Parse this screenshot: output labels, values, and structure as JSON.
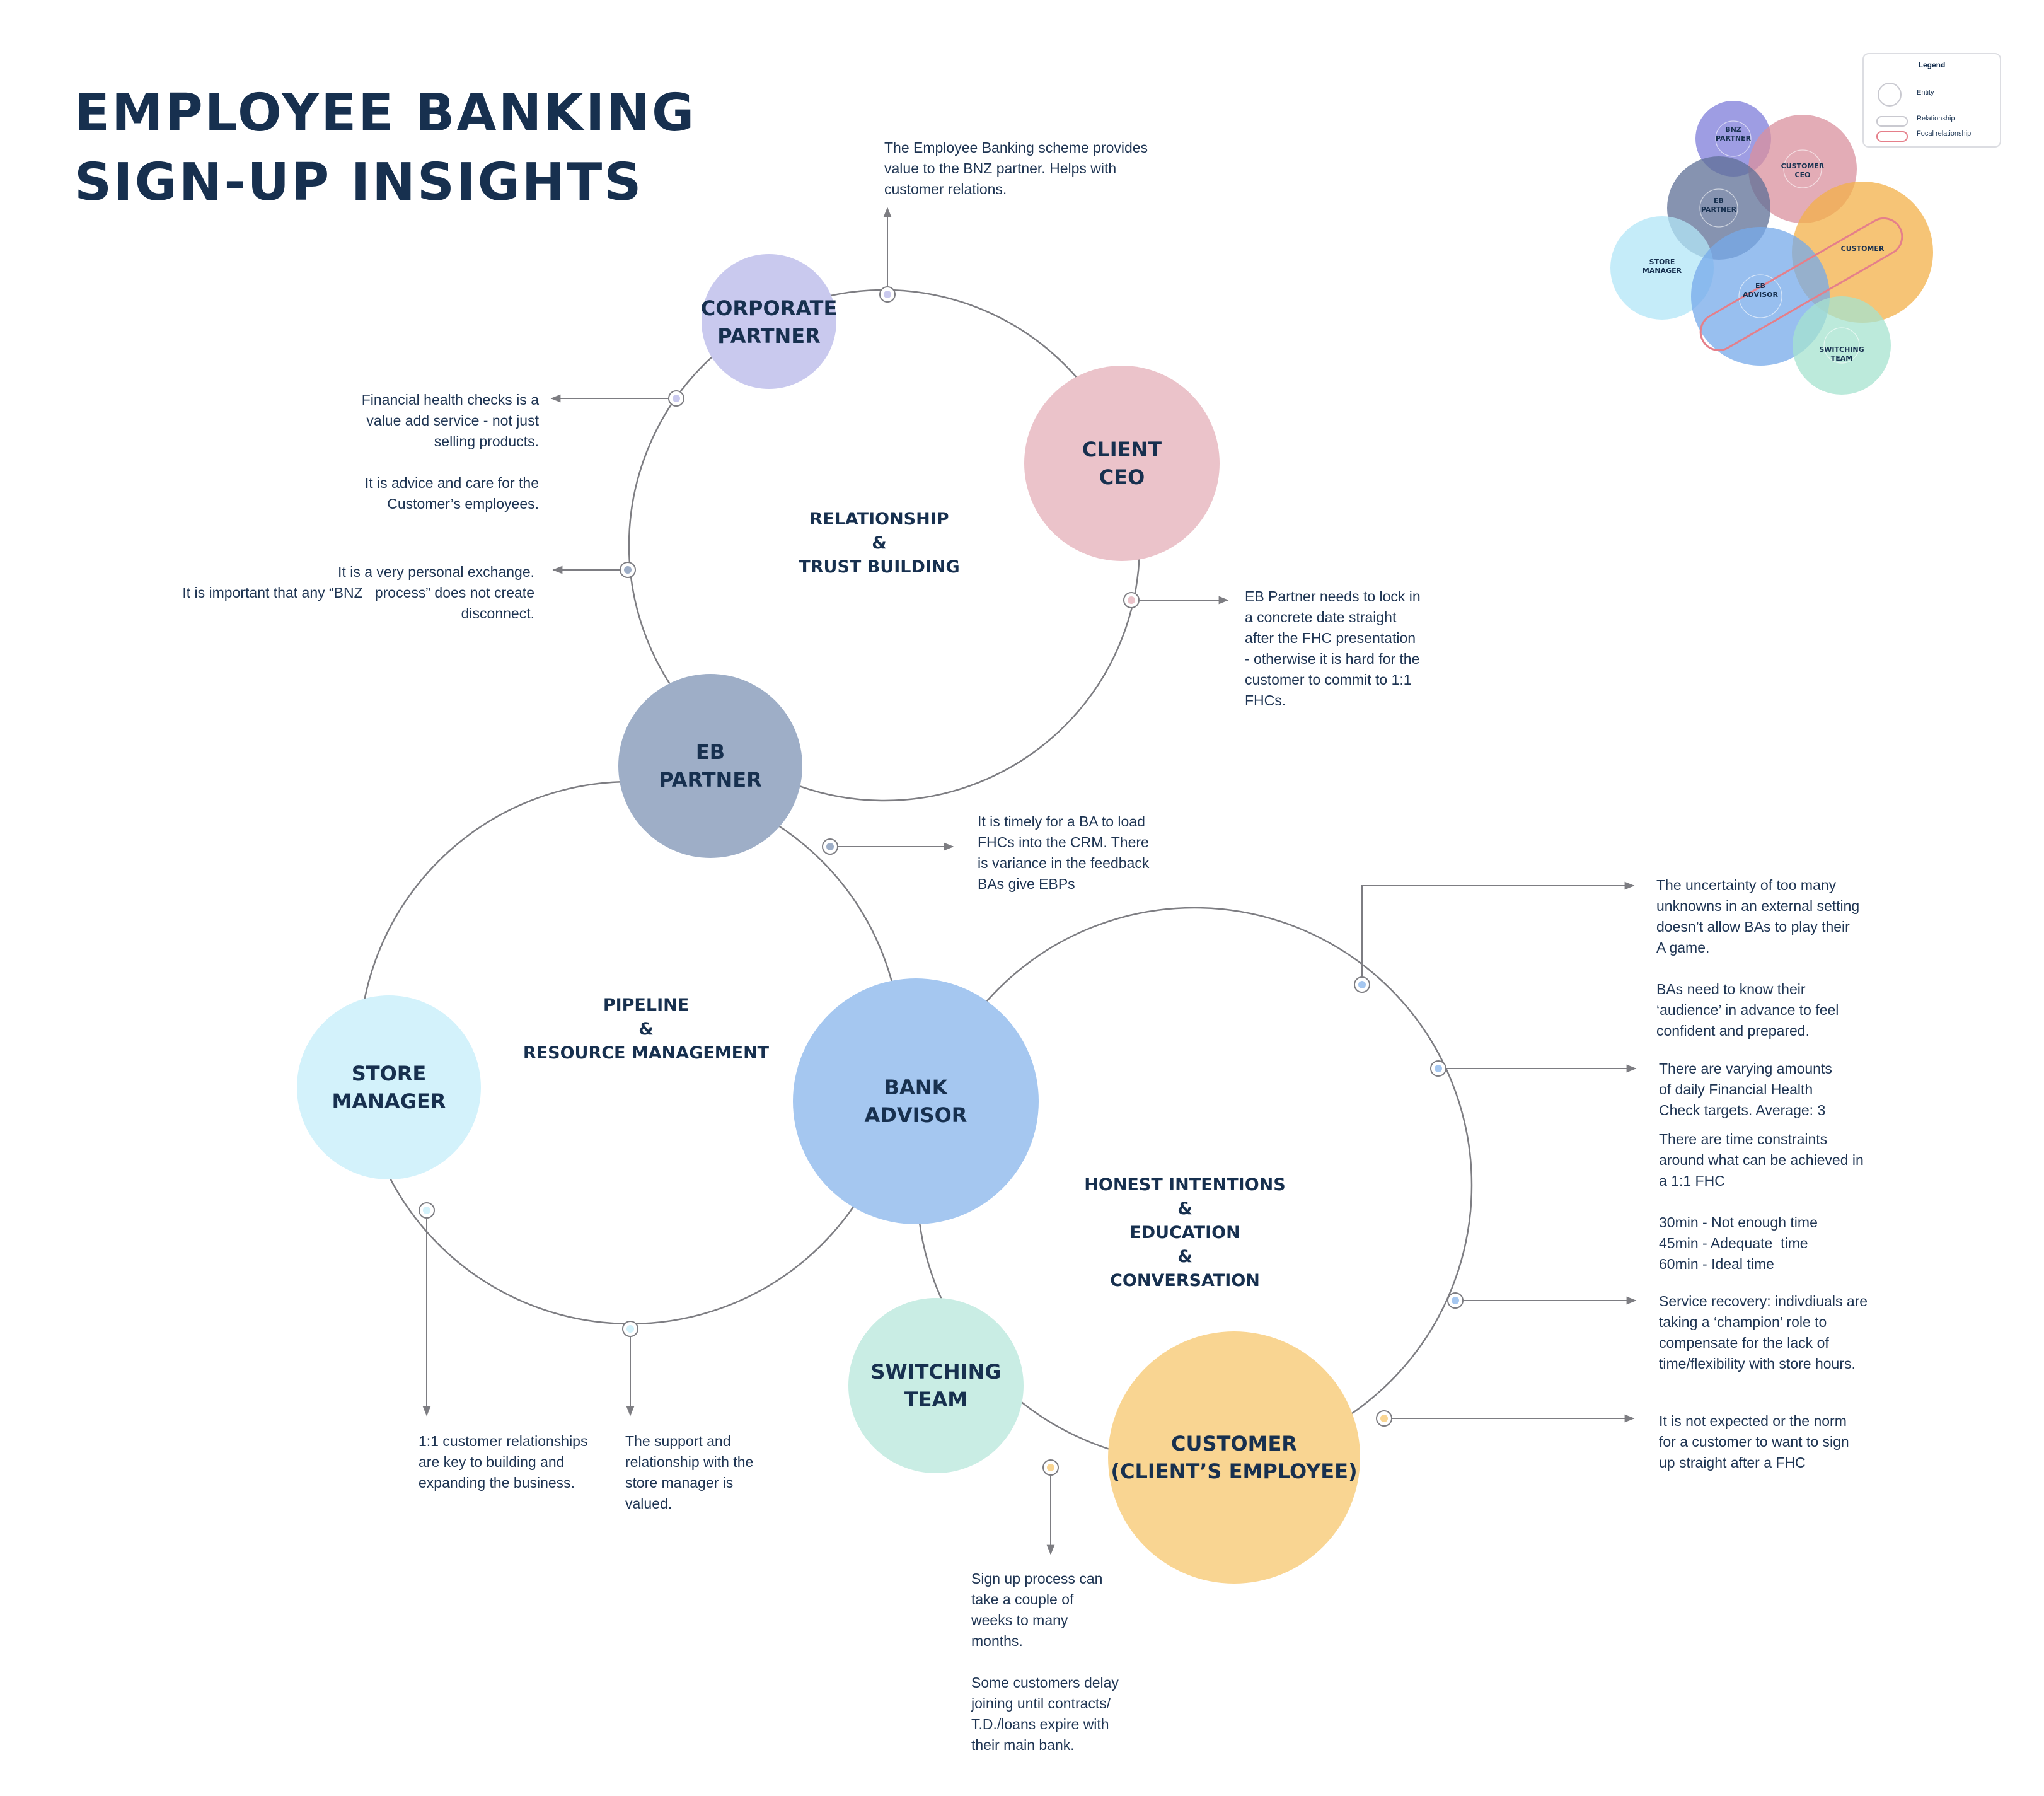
{
  "title": {
    "line1": "EMPLOYEE BANKING",
    "line2": "SIGN-UP INSIGHTS"
  },
  "colors": {
    "ink": "#17304f",
    "line": "#7d7d82",
    "corporate_partner": "#c9c9ee",
    "client_ceo": "#ebc3ca",
    "eb_partner": "#9eaec7",
    "store_manager": "#d3f2fb",
    "bank_advisor": "#a5c7f0",
    "switching_team": "#c9ede4",
    "customer": "#f9d592",
    "focal": "#e57f8a"
  },
  "entities": {
    "corporate_partner": "CORPORATE\nPARTNER",
    "client_ceo": "CLIENT\nCEO",
    "eb_partner": "EB\nPARTNER",
    "store_manager": "STORE\nMANAGER",
    "bank_advisor": "BANK\nADVISOR",
    "switching_team": "SWITCHING\nTEAM",
    "customer": "CUSTOMER\n(CLIENT’S EMPLOYEE)"
  },
  "relationships": {
    "relationship_trust": "RELATIONSHIP\n&\nTRUST BUILDING",
    "pipeline": "PIPELINE\n&\nRESOURCE MANAGEMENT",
    "honest": "HONEST INTENTIONS\n&\nEDUCATION\n&\nCONVERSATION"
  },
  "notes": {
    "scheme_value": "The Employee Banking scheme provides\nvalue to the BNZ partner. Helps with\ncustomer relations.",
    "health_checks": "Financial health checks is a\nvalue add service - not just\nselling products.\n\nIt is advice and care for the\nCustomer’s employees.",
    "personal_exchange": "It is a very personal exchange.\nIt is important that any “BNZ   process” does not create\ndisconnect.",
    "lock_date": "EB Partner needs to lock in\na concrete date straight\nafter the FHC presentation\n- otherwise it is hard for the\ncustomer to commit to 1:1\nFHCs.",
    "timely_ba": "It is timely for a BA to load\nFHCs into the CRM. There\nis variance in the feedback\nBAs give EBPs",
    "uncertainty": "The uncertainty of too many\nunknowns in an external setting\ndoesn’t allow BAs to play their\nA game.\n\nBAs need to know their\n‘audience’ in advance to feel\nconfident and prepared.",
    "targets": "There are varying amounts\nof daily Financial Health\nCheck targets. Average: 3",
    "time_constraints": "There are time constraints\naround what can be achieved in\na 1:1 FHC\n\n30min - Not enough time\n45min - Adequate  time\n60min - Ideal time",
    "service_recovery": "Service recovery: indivdiuals are\ntaking a ‘champion’ role to\ncompensate for the lack of\ntime/flexibility with store hours.",
    "not_expected": "It is not expected or the norm\nfor a customer to want to sign\nup straight after a FHC",
    "one_to_one": "1:1 customer relationships\nare key to building and\nexpanding the business.",
    "store_support": "The support and\nrelationship with the\nstore manager is\nvalued.",
    "signup_process": "Sign up process can\ntake a couple of\nweeks to many\nmonths.\n\nSome customers delay\njoining until contracts/\nT.D./loans expire with\ntheir main bank."
  },
  "legend": {
    "title": "Legend",
    "entity": "Entity",
    "relationship": "Relationship",
    "focal": "Focal relationship"
  },
  "mini_map": {
    "bnz_partner": "BNZ\nPARTNER",
    "customer_ceo": "CUSTOMER\nCEO",
    "eb_partner": "EB\nPARTNER",
    "customer": "CUSTOMER",
    "store_manager": "STORE\nMANAGER",
    "eb_advisor": "EB\nADVISOR",
    "switching_team": "SWITCHING\nTEAM"
  }
}
